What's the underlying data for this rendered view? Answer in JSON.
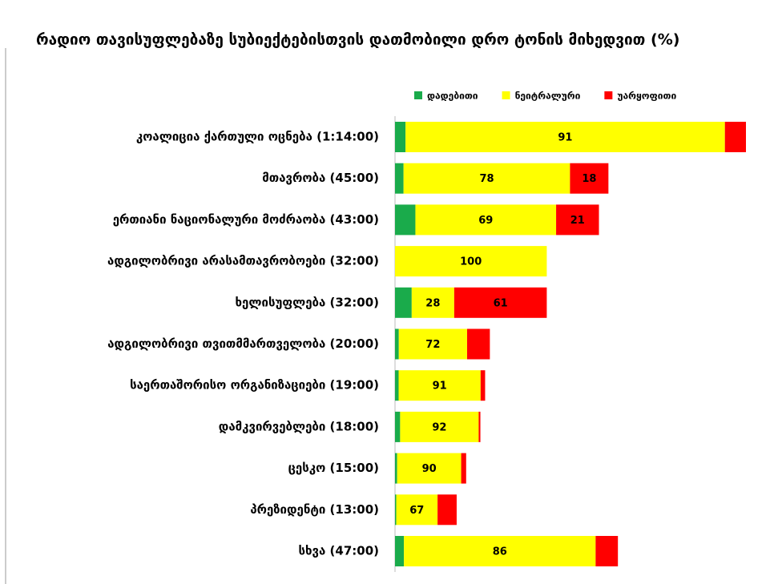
{
  "chart_data": {
    "type": "stacked_barh",
    "title": "რადიო თავისუფლებაზე სუბიექტებისთვის დათმობილი დრო ტონის მიხედვით (%)",
    "categories": [
      "კოალიცია ქართული ოცნება (1:14:00)",
      "მთავრობა (45:00)",
      "ერთიანი ნაციონალური მოძრაობა (43:00)",
      "ადგილობრივი არასამთავრობოები (32:00)",
      "ხელისუფლება (32:00)",
      "ადგილობრივი თვითმმართველობა (20:00)",
      "საერთაშორისო ორგანიზაციები (19:00)",
      "დამკვირვებლები (18:00)",
      "ცესკო (15:00)",
      "პრეზიდენტი (13:00)",
      "სხვა (47:00)"
    ],
    "series": [
      {
        "name": "დადებითი",
        "color": "#1aab4b",
        "values": [
          3,
          4,
          10,
          0,
          11,
          4,
          4,
          6,
          3,
          2,
          4
        ],
        "value_labels": [
          null,
          null,
          null,
          null,
          null,
          null,
          null,
          null,
          null,
          null,
          null
        ]
      },
      {
        "name": "ნეიტრალური",
        "color": "#ffff00",
        "values": [
          91,
          78,
          69,
          100,
          28,
          72,
          91,
          92,
          90,
          67,
          86
        ],
        "value_labels": [
          "91",
          "78",
          "69",
          "100",
          "28",
          "72",
          "91",
          "92",
          "90",
          "67",
          "86"
        ]
      },
      {
        "name": "უარყოფითი",
        "color": "#ff0000",
        "values": [
          6,
          18,
          21,
          0,
          61,
          24,
          5,
          2,
          7,
          31,
          10
        ],
        "value_labels": [
          null,
          "18",
          "21",
          null,
          "61",
          null,
          null,
          null,
          null,
          null,
          null
        ]
      }
    ],
    "legend": "top"
  }
}
